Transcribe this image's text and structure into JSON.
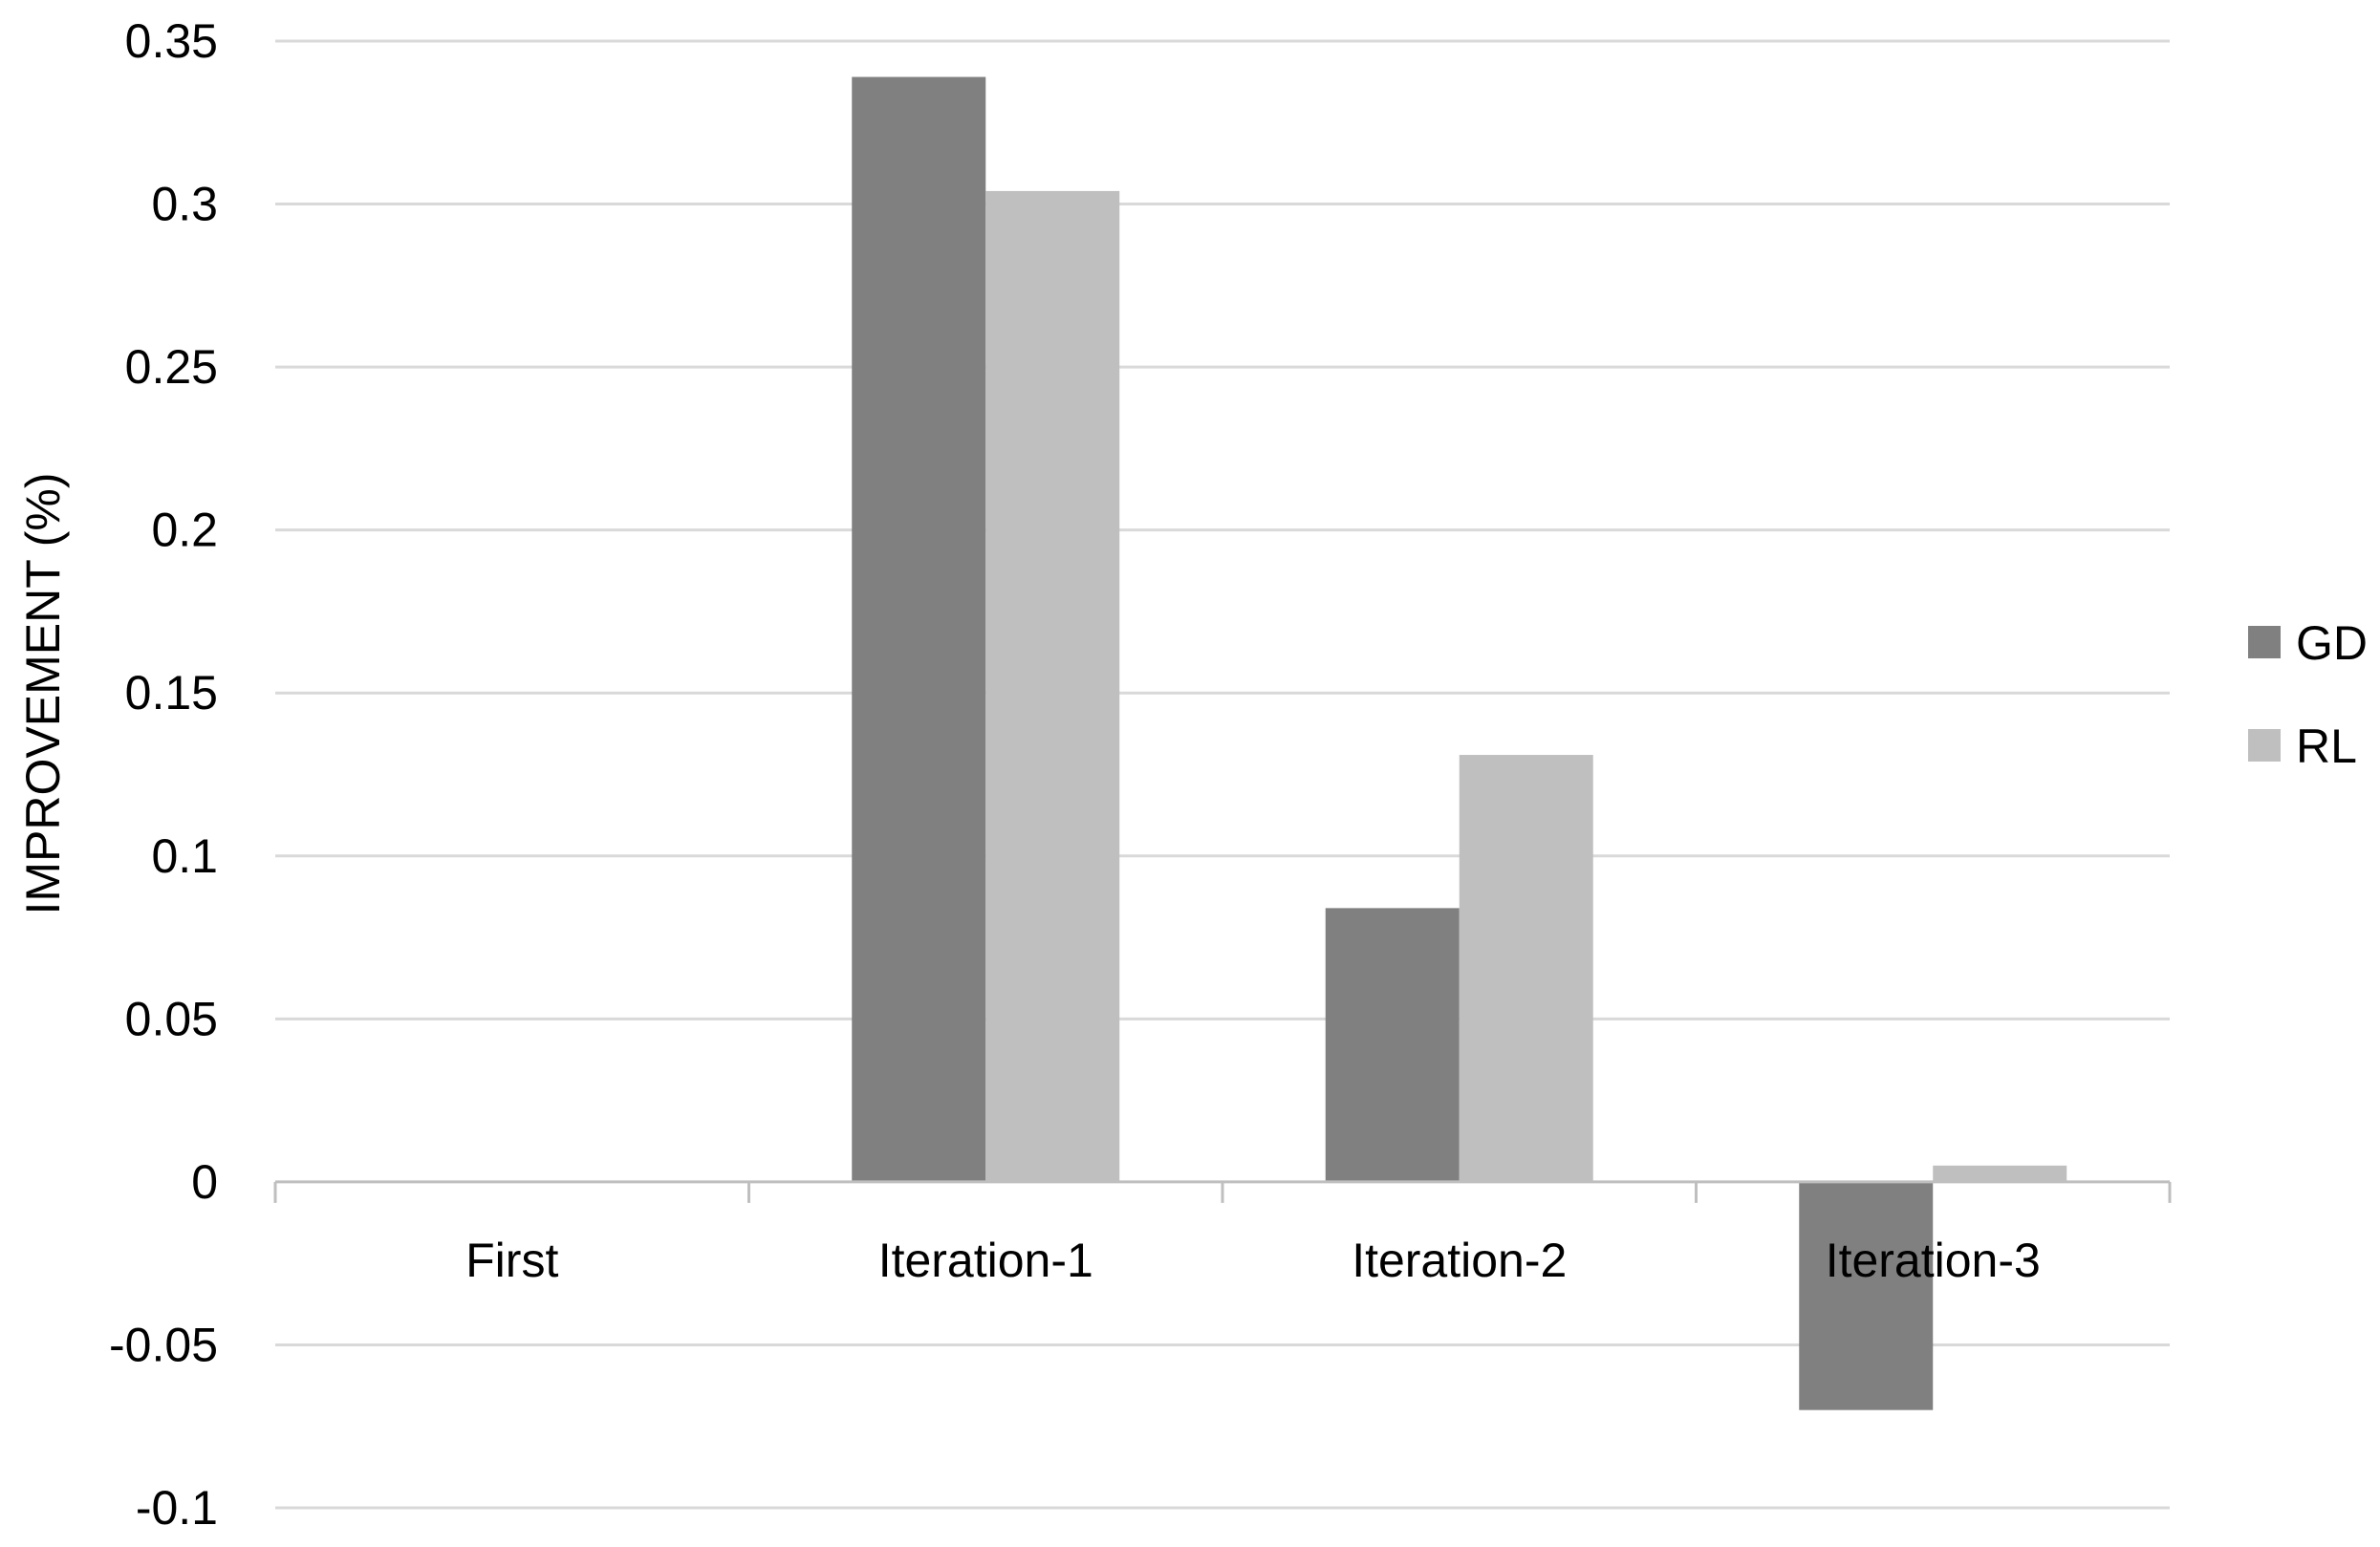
{
  "chart_data": {
    "type": "bar",
    "title": "",
    "xlabel": "",
    "ylabel": "IMPROVEMENT (%)",
    "categories": [
      "First",
      "Iteration-1",
      "Iteration-2",
      "Iteration-3"
    ],
    "series": [
      {
        "name": "GD",
        "values": [
          0,
          0.339,
          0.084,
          -0.07
        ],
        "color": "#808080"
      },
      {
        "name": "RL",
        "values": [
          0,
          0.304,
          0.131,
          0.005
        ],
        "color": "#bfbfbf"
      }
    ],
    "ylim": [
      -0.1,
      0.35
    ],
    "yticks": [
      "-0.1",
      "-0.05",
      "0",
      "0.05",
      "0.1",
      "0.15",
      "0.2",
      "0.25",
      "0.3",
      "0.35"
    ],
    "grid": true,
    "legend_position": "right",
    "colors": {
      "gridline": "#d9d9d9",
      "axis": "#bfbfbf"
    }
  }
}
